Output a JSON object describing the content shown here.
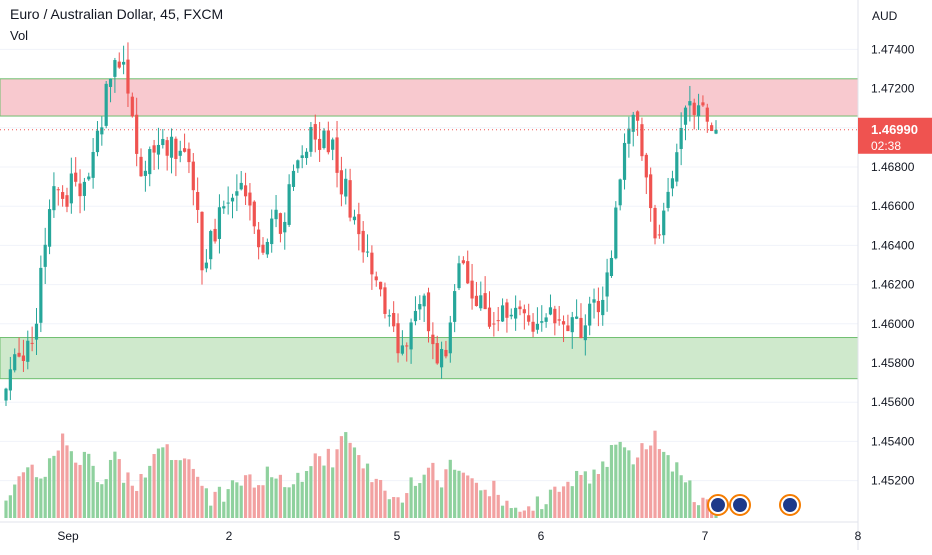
{
  "header": {
    "title": "Euro / Australian Dollar, 45, FXCM",
    "volume_label": "Vol"
  },
  "price_axis": {
    "currency": "AUD",
    "current_price": "1.46990",
    "countdown": "02:38"
  },
  "colors": {
    "up": "#26a69a",
    "down": "#ef5350",
    "up_volume": "#8fd19e",
    "down_volume": "#f2a1a1",
    "resistance_zone": "#f8c9cf",
    "support_zone": "#cfe9cc",
    "price_tag": "#ef5350"
  },
  "chart_data": {
    "type": "candlestick",
    "title": "Euro / Australian Dollar, 45, FXCM",
    "ylabel": "AUD",
    "ylim": [
      1.4505,
      1.4755
    ],
    "yticks": [
      1.452,
      1.454,
      1.456,
      1.458,
      1.46,
      1.462,
      1.464,
      1.466,
      1.468,
      1.47,
      1.472,
      1.474
    ],
    "ytick_labels": [
      "1.45200",
      "1.45400",
      "1.45600",
      "1.45800",
      "1.46000",
      "1.46200",
      "1.46400",
      "1.46600",
      "1.46800",
      "1.47000",
      "1.47200",
      "1.47400"
    ],
    "x_labels": [
      "Sep",
      "2",
      "5",
      "6",
      "7",
      "8"
    ],
    "last_price": 1.4699,
    "zones": [
      {
        "type": "resistance",
        "from": 1.4706,
        "to": 1.4725
      },
      {
        "type": "support",
        "from": 1.4572,
        "to": 1.4593
      }
    ],
    "series": [
      {
        "name": "Price",
        "close_path": [
          1.4562,
          1.4585,
          1.4582,
          1.4598,
          1.4642,
          1.4668,
          1.4662,
          1.4676,
          1.4668,
          1.4694,
          1.4712,
          1.4735,
          1.4728,
          1.4696,
          1.4675,
          1.4688,
          1.4692,
          1.4688,
          1.4695,
          1.4672,
          1.4626,
          1.4645,
          1.4662,
          1.4658,
          1.4673,
          1.4655,
          1.4642,
          1.4648,
          1.4655,
          1.4672,
          1.4688,
          1.4697,
          1.4695,
          1.4688,
          1.4674,
          1.4657,
          1.4639,
          1.4628,
          1.4615,
          1.4598,
          1.459,
          1.4596,
          1.4616,
          1.4598,
          1.4579,
          1.4592,
          1.4635,
          1.4623,
          1.4612,
          1.4604,
          1.4609,
          1.4596,
          1.4605,
          1.4599,
          1.4602,
          1.4607,
          1.4603,
          1.46,
          1.4597,
          1.4606,
          1.4609,
          1.4627,
          1.4662,
          1.4699,
          1.4702,
          1.4668,
          1.4642,
          1.4662,
          1.4683,
          1.4705,
          1.4711,
          1.4705,
          1.4699
        ],
        "volume_path": [
          0.22,
          0.32,
          0.45,
          0.35,
          0.38,
          0.6,
          0.7,
          0.5,
          0.52,
          0.4,
          0.34,
          0.48,
          0.32,
          0.26,
          0.38,
          0.46,
          0.55,
          0.48,
          0.45,
          0.36,
          0.2,
          0.14,
          0.2,
          0.24,
          0.3,
          0.28,
          0.32,
          0.36,
          0.34,
          0.3,
          0.32,
          0.42,
          0.52,
          0.48,
          0.62,
          0.68,
          0.5,
          0.38,
          0.3,
          0.22,
          0.2,
          0.24,
          0.35,
          0.4,
          0.3,
          0.42,
          0.4,
          0.34,
          0.28,
          0.26,
          0.2,
          0.14,
          0.08,
          0.06,
          0.12,
          0.2,
          0.28,
          0.34,
          0.36,
          0.32,
          0.42,
          0.5,
          0.58,
          0.48,
          0.5,
          0.6,
          0.66,
          0.55,
          0.38,
          0.26,
          0.2,
          0.14,
          0.1
        ]
      }
    ]
  }
}
